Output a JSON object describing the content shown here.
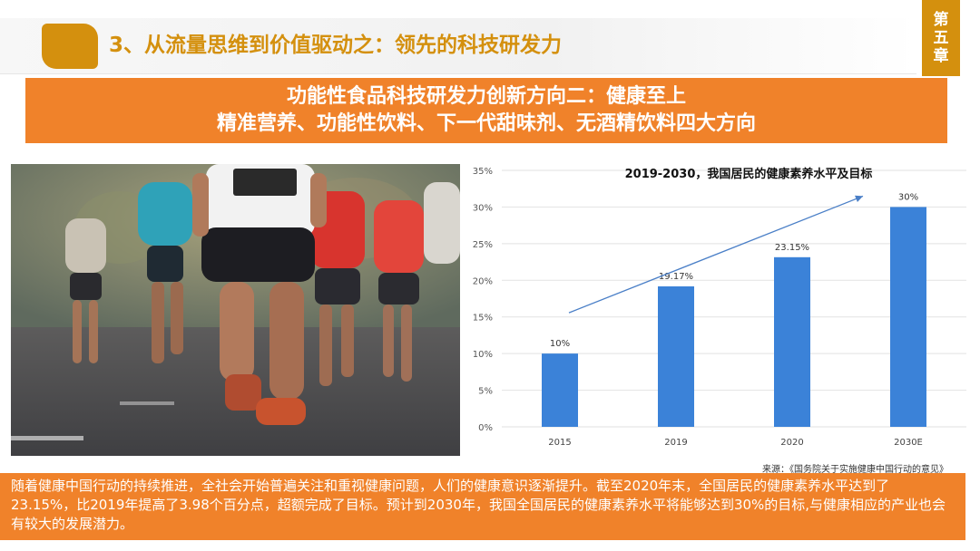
{
  "header": {
    "section_title": "3、从流量思维到价值驱动之：领先的科技研发力",
    "chapter_tab": [
      "第",
      "五",
      "章"
    ]
  },
  "banner": {
    "line1": "功能性食品科技研发力创新方向二：健康至上",
    "line2": "精准营养、功能性饮料、下一代甜味剂、无酒精饮料四大方向"
  },
  "photo": {
    "alt_icon": "marathon-runners-photo"
  },
  "chart_data": {
    "type": "bar",
    "title": "2019-2030，我国居民的健康素养水平及目标",
    "categories": [
      "2015",
      "2019",
      "2020",
      "2030E"
    ],
    "values": [
      10,
      19.17,
      23.15,
      30
    ],
    "data_labels": [
      "10%",
      "19.17%",
      "23.15%",
      "30%"
    ],
    "y_ticks": [
      "0%",
      "5%",
      "10%",
      "15%",
      "20%",
      "25%",
      "30%",
      "35%"
    ],
    "ylim": [
      0,
      35
    ],
    "grid": true,
    "bar_color": "#3b82d8",
    "trend_arrow": true
  },
  "source": "来源：《国务院关于实施健康中国行动的意见》",
  "footer": {
    "text": "随着健康中国行动的持续推进，全社会开始普遍关注和重视健康问题，人们的健康意识逐渐提升。截至2020年末，全国居民的健康素养水平达到了23.15%，比2019年提高了3.98个百分点，超额完成了目标。预计到2030年，我国全国居民的健康素养水平将能够达到30%的目标,与健康相应的产业也会有较大的发展潜力。"
  },
  "colors": {
    "accent_gold": "#d4900e",
    "accent_orange": "#f0822a"
  }
}
